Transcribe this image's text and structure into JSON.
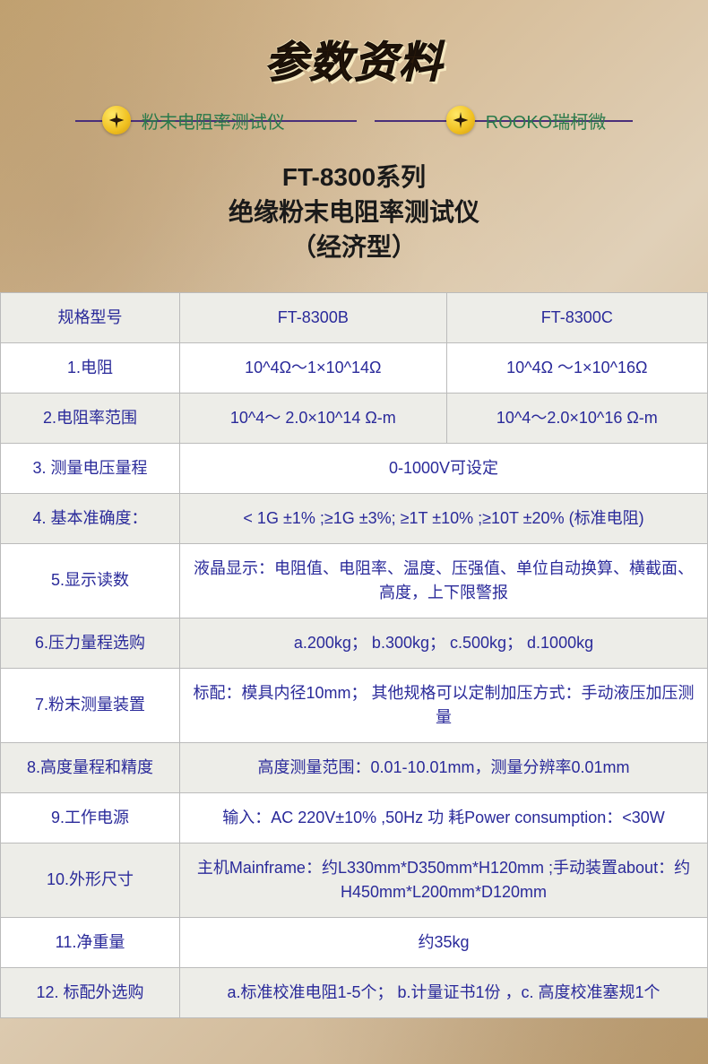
{
  "title": "参数资料",
  "badges": {
    "left": "粉末电阻率测试仪",
    "right": "ROOKO瑞柯微"
  },
  "subtitle_line1": "FT-8300系列",
  "subtitle_line2": "绝缘粉末电阻率测试仪",
  "subtitle_line3": "（经济型）",
  "colors": {
    "title_fill": "#2a1a0a",
    "title_outline": "#f5e8c0",
    "divider": "#4a2f7a",
    "badge_text": "#2a7a4a",
    "star_bg": "#f0c020",
    "table_text": "#2a2a9a",
    "table_border": "#bbbbbb",
    "row_alt_bg": "#edede8",
    "row_white_bg": "#ffffff"
  },
  "table": {
    "header": {
      "label": "规格型号",
      "b": "FT-8300B",
      "c": "FT-8300C"
    },
    "rows": [
      {
        "label": "1.电阻",
        "b": "10^4Ω～1×10^14Ω",
        "c": "10^4Ω ～1×10^16Ω",
        "merged": false,
        "alt": false
      },
      {
        "label": "2.电阻率范围",
        "b": "10^4～ 2.0×10^14 Ω-m",
        "c": "10^4～2.0×10^16 Ω-m",
        "merged": false,
        "alt": true
      },
      {
        "label": "3. 测量电压量程",
        "value": "0-1000V可设定",
        "merged": true,
        "alt": false
      },
      {
        "label": "4. 基本准确度：",
        "value": "< 1G  ±1% ;≥1G ±3%;  ≥1T ±10%  ;≥10T ±20% (标准电阻)",
        "merged": true,
        "alt": true
      },
      {
        "label": "5.显示读数",
        "value": "液晶显示：电阻值、电阻率、温度、压强值、单位自动换算、横截面、高度，上下限警报",
        "merged": true,
        "alt": false
      },
      {
        "label": "6.压力量程选购",
        "value": "a.200kg；   b.300kg；   c.500kg；   d.1000kg",
        "merged": true,
        "alt": true
      },
      {
        "label": "7.粉末测量装置",
        "value": "标配：模具内径10mm； 其他规格可以定制加压方式：手动液压加压测量",
        "merged": true,
        "alt": false
      },
      {
        "label": "8.高度量程和精度",
        "value": "高度测量范围：0.01-10.01mm，测量分辨率0.01mm",
        "merged": true,
        "alt": true
      },
      {
        "label": "9.工作电源",
        "value": "输入：AC 220V±10% ,50Hz 功 耗Power consumption：<30W",
        "merged": true,
        "alt": false
      },
      {
        "label": "10.外形尺寸",
        "value": "主机Mainframe：约L330mm*D350mm*H120mm ;手动装置about：约H450mm*L200mm*D120mm",
        "merged": true,
        "alt": true
      },
      {
        "label": "11.净重量",
        "value": "约35kg",
        "merged": true,
        "alt": false
      },
      {
        "label": "12. 标配外选购",
        "value": "a.标准校准电阻1-5个； b.计量证书1份 ，c. 高度校准塞规1个",
        "merged": true,
        "alt": true
      }
    ]
  }
}
